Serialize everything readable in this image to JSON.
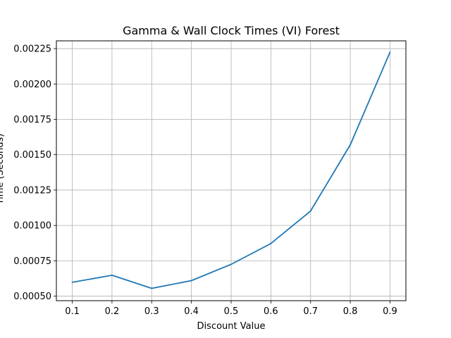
{
  "chart_data": {
    "type": "line",
    "title": "Gamma & Wall Clock Times (VI) Forest",
    "xlabel": "Discount Value",
    "ylabel": "Time (Seconds)",
    "x": [
      0.1,
      0.2,
      0.3,
      0.4,
      0.5,
      0.6,
      0.7,
      0.8,
      0.9
    ],
    "xticks": [
      "0.1",
      "0.2",
      "0.3",
      "0.4",
      "0.5",
      "0.6",
      "0.7",
      "0.8",
      "0.9"
    ],
    "yticks": [
      "0.00050",
      "0.00075",
      "0.00100",
      "0.00125",
      "0.00150",
      "0.00175",
      "0.00200",
      "0.00225"
    ],
    "ytick_values": [
      0.0005,
      0.00075,
      0.001,
      0.00125,
      0.0015,
      0.00175,
      0.002,
      0.00225
    ],
    "xlim": [
      0.06,
      0.94
    ],
    "ylim": [
      0.000468,
      0.002305
    ],
    "grid": true,
    "series": [
      {
        "color": "#1f77b4",
        "values": [
          0.000598,
          0.000648,
          0.000555,
          0.00061,
          0.000725,
          0.000872,
          0.001102,
          0.00157,
          0.002225
        ]
      }
    ]
  }
}
